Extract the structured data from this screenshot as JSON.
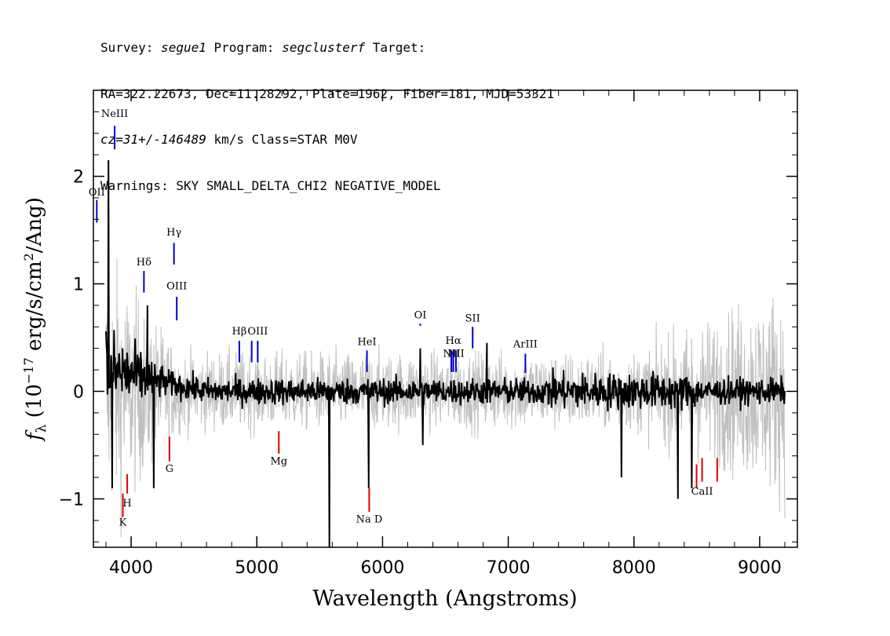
{
  "header": {
    "line1": {
      "p1": "Survey: ",
      "survey": "segue1",
      "p2": " Program: ",
      "program": "segclusterf",
      "p3": " Target:"
    },
    "line2": "RA=322.22673, Dec=11.28292, Plate=1962, Fiber=181, MJD=53321",
    "line3": {
      "cz": "cz=31+/-146489",
      "rest": " km/s Class=STAR M0V"
    },
    "line4": "Warnings: SKY SMALL_DELTA_CHI2 NEGATIVE_MODEL"
  },
  "chart_data": {
    "type": "line",
    "xlabel": "Wavelength (Angstroms)",
    "ylabel": "f_λ (10^-17 erg/s/cm²/Ang)",
    "xlim": [
      3700,
      9300
    ],
    "ylim": [
      -1.45,
      2.8
    ],
    "xticks": [
      4000,
      5000,
      6000,
      7000,
      8000,
      9000
    ],
    "yticks": [
      -1,
      0,
      1,
      2
    ],
    "colors": {
      "flux": "#000000",
      "error": "#c0c0c0",
      "emission": "#0000cc",
      "absorption": "#dd0000"
    },
    "series": [
      {
        "kind": "flux",
        "x_range": [
          3800,
          9200
        ],
        "typical_level": 0.0,
        "noise_amplitude": 0.12,
        "notable_points": [
          [
            3820,
            2.15
          ],
          [
            3850,
            -0.9
          ],
          [
            4130,
            0.8
          ],
          [
            4180,
            -0.9
          ],
          [
            5577,
            -1.45
          ],
          [
            5890,
            -0.9
          ],
          [
            6300,
            0.4
          ],
          [
            6320,
            -0.5
          ],
          [
            6830,
            0.45
          ],
          [
            7900,
            -0.8
          ],
          [
            8350,
            -1.0
          ],
          [
            8460,
            -0.9
          ]
        ]
      },
      {
        "kind": "error",
        "x_range": [
          3800,
          9200
        ],
        "typical_level": 0.0,
        "band_amplitude": 0.35
      }
    ],
    "emission_lines": [
      {
        "label": "NeIII",
        "x": 3869,
        "y_bottom": 2.25,
        "y_top": 2.47,
        "label_y": 2.55
      },
      {
        "label": "OII",
        "x": 3727,
        "y_bottom": 1.57,
        "y_top": 1.78,
        "label_y": 1.82
      },
      {
        "label": "Hγ",
        "x": 4341,
        "y_bottom": 1.18,
        "y_top": 1.38,
        "label_y": 1.45
      },
      {
        "label": "Hδ",
        "x": 4102,
        "y_bottom": 0.92,
        "y_top": 1.12,
        "label_y": 1.17
      },
      {
        "label": "OIII",
        "x": 4363,
        "y_bottom": 0.66,
        "y_top": 0.88,
        "label_y": 0.95
      },
      {
        "label": "Hβ",
        "x": 4861,
        "y_bottom": 0.27,
        "y_top": 0.47,
        "label_y": 0.53
      },
      {
        "label": "OIII",
        "x": 4959,
        "y_bottom": 0.27,
        "y_top": 0.47,
        "label_y": null
      },
      {
        "label": "OIII",
        "x": 5007,
        "y_bottom": 0.27,
        "y_top": 0.47,
        "label_y": 0.53
      },
      {
        "label": "HeI",
        "x": 5876,
        "y_bottom": 0.18,
        "y_top": 0.38,
        "label_y": 0.43
      },
      {
        "label": "OI",
        "x": 6300,
        "y_bottom": 0.61,
        "y_top": 0.63,
        "label_y": 0.68
      },
      {
        "label": "NII",
        "x": 6548,
        "y_bottom": 0.18,
        "y_top": 0.38,
        "label_y": 0.32
      },
      {
        "label": "Hα",
        "x": 6563,
        "y_bottom": 0.18,
        "y_top": 0.38,
        "label_y": 0.44
      },
      {
        "label": "NII",
        "x": 6584,
        "y_bottom": 0.18,
        "y_top": 0.38,
        "label_y": 0.32
      },
      {
        "label": "SII",
        "x": 6717,
        "y_bottom": 0.4,
        "y_top": 0.6,
        "label_y": 0.65
      },
      {
        "label": "ArIII",
        "x": 7136,
        "y_bottom": 0.17,
        "y_top": 0.35,
        "label_y": 0.41
      }
    ],
    "absorption_lines": [
      {
        "label": "K",
        "x": 3934,
        "y_top": -0.95,
        "y_bottom": -1.17,
        "label_y": -1.25
      },
      {
        "label": "H",
        "x": 3969,
        "y_top": -0.77,
        "y_bottom": -0.95,
        "label_y": -1.07
      },
      {
        "label": "G",
        "x": 4305,
        "y_top": -0.42,
        "y_bottom": -0.65,
        "label_y": -0.75
      },
      {
        "label": "Mg",
        "x": 5175,
        "y_top": -0.37,
        "y_bottom": -0.58,
        "label_y": -0.68
      },
      {
        "label": "Na D",
        "x": 5894,
        "y_top": -0.9,
        "y_bottom": -1.12,
        "label_y": -1.22
      },
      {
        "label": "CaII",
        "x": 8498,
        "y_top": -0.68,
        "y_bottom": -0.9,
        "label_y": null
      },
      {
        "label": "CaII",
        "x": 8542,
        "y_top": -0.62,
        "y_bottom": -0.84,
        "label_y": -0.96
      },
      {
        "label": "CaII",
        "x": 8662,
        "y_top": -0.62,
        "y_bottom": -0.84,
        "label_y": null
      }
    ]
  }
}
